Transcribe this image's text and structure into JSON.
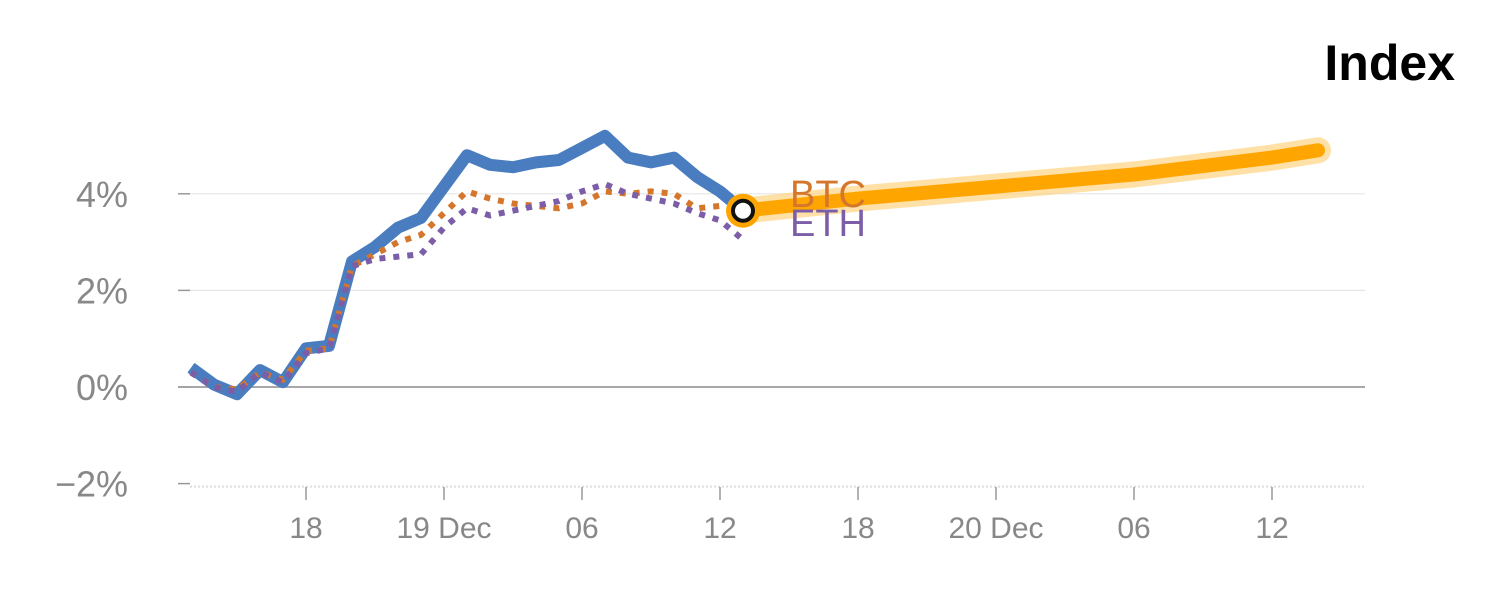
{
  "chart_data": {
    "type": "line",
    "title": "Index",
    "xlabel": "",
    "ylabel": "",
    "x_ticks": [
      "18",
      "19 Dec",
      "06",
      "12",
      "18",
      "20 Dec",
      "06",
      "12"
    ],
    "y_ticks": [
      "−2%",
      "0%",
      "2%",
      "4%"
    ],
    "ylim": [
      -2,
      5.5
    ],
    "grid": true,
    "series": [
      {
        "name": "",
        "style": "solid",
        "points": [
          {
            "t": "18 Dec 13:00",
            "y": 0.4
          },
          {
            "t": "18 Dec 14:00",
            "y": 0.05
          },
          {
            "t": "18 Dec 15:00",
            "y": -0.15
          },
          {
            "t": "18 Dec 16:00",
            "y": 0.35
          },
          {
            "t": "18 Dec 17:00",
            "y": 0.1
          },
          {
            "t": "18 Dec 18:00",
            "y": 0.8
          },
          {
            "t": "18 Dec 19:00",
            "y": 0.85
          },
          {
            "t": "18 Dec 20:00",
            "y": 2.6
          },
          {
            "t": "18 Dec 21:00",
            "y": 2.9
          },
          {
            "t": "18 Dec 22:00",
            "y": 3.3
          },
          {
            "t": "18 Dec 23:00",
            "y": 3.5
          },
          {
            "t": "19 Dec 00:00",
            "y": 4.15
          },
          {
            "t": "19 Dec 01:00",
            "y": 4.8
          },
          {
            "t": "19 Dec 02:00",
            "y": 4.6
          },
          {
            "t": "19 Dec 03:00",
            "y": 4.55
          },
          {
            "t": "19 Dec 04:00",
            "y": 4.65
          },
          {
            "t": "19 Dec 05:00",
            "y": 4.7
          },
          {
            "t": "19 Dec 06:00",
            "y": 4.95
          },
          {
            "t": "19 Dec 07:00",
            "y": 5.2
          },
          {
            "t": "19 Dec 08:00",
            "y": 4.75
          },
          {
            "t": "19 Dec 09:00",
            "y": 4.65
          },
          {
            "t": "19 Dec 10:00",
            "y": 4.75
          },
          {
            "t": "19 Dec 11:00",
            "y": 4.35
          },
          {
            "t": "19 Dec 12:00",
            "y": 4.05
          },
          {
            "t": "19 Dec 13:00",
            "y": 3.65
          }
        ]
      },
      {
        "name": "BTC",
        "style": "dotted",
        "points": [
          {
            "t": "18 Dec 13:00",
            "y": 0.3
          },
          {
            "t": "18 Dec 14:00",
            "y": 0.0
          },
          {
            "t": "18 Dec 15:00",
            "y": -0.05
          },
          {
            "t": "18 Dec 16:00",
            "y": 0.3
          },
          {
            "t": "18 Dec 17:00",
            "y": 0.15
          },
          {
            "t": "18 Dec 18:00",
            "y": 0.75
          },
          {
            "t": "18 Dec 19:00",
            "y": 0.8
          },
          {
            "t": "18 Dec 20:00",
            "y": 2.5
          },
          {
            "t": "18 Dec 21:00",
            "y": 2.75
          },
          {
            "t": "18 Dec 22:00",
            "y": 3.0
          },
          {
            "t": "18 Dec 23:00",
            "y": 3.15
          },
          {
            "t": "19 Dec 00:00",
            "y": 3.6
          },
          {
            "t": "19 Dec 01:00",
            "y": 4.05
          },
          {
            "t": "19 Dec 02:00",
            "y": 3.9
          },
          {
            "t": "19 Dec 03:00",
            "y": 3.8
          },
          {
            "t": "19 Dec 04:00",
            "y": 3.75
          },
          {
            "t": "19 Dec 05:00",
            "y": 3.7
          },
          {
            "t": "19 Dec 06:00",
            "y": 3.8
          },
          {
            "t": "19 Dec 07:00",
            "y": 4.05
          },
          {
            "t": "19 Dec 08:00",
            "y": 4.0
          },
          {
            "t": "19 Dec 09:00",
            "y": 4.05
          },
          {
            "t": "19 Dec 10:00",
            "y": 4.0
          },
          {
            "t": "19 Dec 11:00",
            "y": 3.7
          },
          {
            "t": "19 Dec 12:00",
            "y": 3.75
          },
          {
            "t": "19 Dec 13:00",
            "y": 3.65
          }
        ]
      },
      {
        "name": "ETH",
        "style": "dotted",
        "points": [
          {
            "t": "18 Dec 13:00",
            "y": 0.3
          },
          {
            "t": "18 Dec 14:00",
            "y": 0.0
          },
          {
            "t": "18 Dec 15:00",
            "y": -0.1
          },
          {
            "t": "18 Dec 16:00",
            "y": 0.3
          },
          {
            "t": "18 Dec 17:00",
            "y": 0.1
          },
          {
            "t": "18 Dec 18:00",
            "y": 0.7
          },
          {
            "t": "18 Dec 19:00",
            "y": 0.8
          },
          {
            "t": "18 Dec 20:00",
            "y": 2.5
          },
          {
            "t": "18 Dec 21:00",
            "y": 2.65
          },
          {
            "t": "18 Dec 22:00",
            "y": 2.7
          },
          {
            "t": "18 Dec 23:00",
            "y": 2.75
          },
          {
            "t": "19 Dec 00:00",
            "y": 3.3
          },
          {
            "t": "19 Dec 01:00",
            "y": 3.7
          },
          {
            "t": "19 Dec 02:00",
            "y": 3.55
          },
          {
            "t": "19 Dec 03:00",
            "y": 3.65
          },
          {
            "t": "19 Dec 04:00",
            "y": 3.75
          },
          {
            "t": "19 Dec 05:00",
            "y": 3.85
          },
          {
            "t": "19 Dec 06:00",
            "y": 4.05
          },
          {
            "t": "19 Dec 07:00",
            "y": 4.2
          },
          {
            "t": "19 Dec 08:00",
            "y": 4.0
          },
          {
            "t": "19 Dec 09:00",
            "y": 3.9
          },
          {
            "t": "19 Dec 10:00",
            "y": 3.8
          },
          {
            "t": "19 Dec 11:00",
            "y": 3.6
          },
          {
            "t": "19 Dec 12:00",
            "y": 3.45
          },
          {
            "t": "19 Dec 13:00",
            "y": 3.05
          }
        ]
      },
      {
        "name": "",
        "style": "projection",
        "points": [
          {
            "t": "19 Dec 13:00",
            "y": 3.65
          },
          {
            "t": "19 Dec 18:00",
            "y": 3.9
          },
          {
            "t": "20 Dec 00:00",
            "y": 4.15
          },
          {
            "t": "20 Dec 06:00",
            "y": 4.4
          },
          {
            "t": "20 Dec 12:00",
            "y": 4.75
          },
          {
            "t": "20 Dec 14:00",
            "y": 4.9
          }
        ]
      }
    ],
    "marker": {
      "t": "19 Dec 13:00",
      "y": 3.65
    },
    "colors": {
      "index": "#4a7dc0",
      "btc": "#d4772c",
      "eth": "#7b5ea7",
      "projection": "#ffa500",
      "projection_glow": "#ffd58a",
      "axis_text": "#888888",
      "grid": "#e6e6e6",
      "zero_line": "#8c8c8c"
    }
  }
}
